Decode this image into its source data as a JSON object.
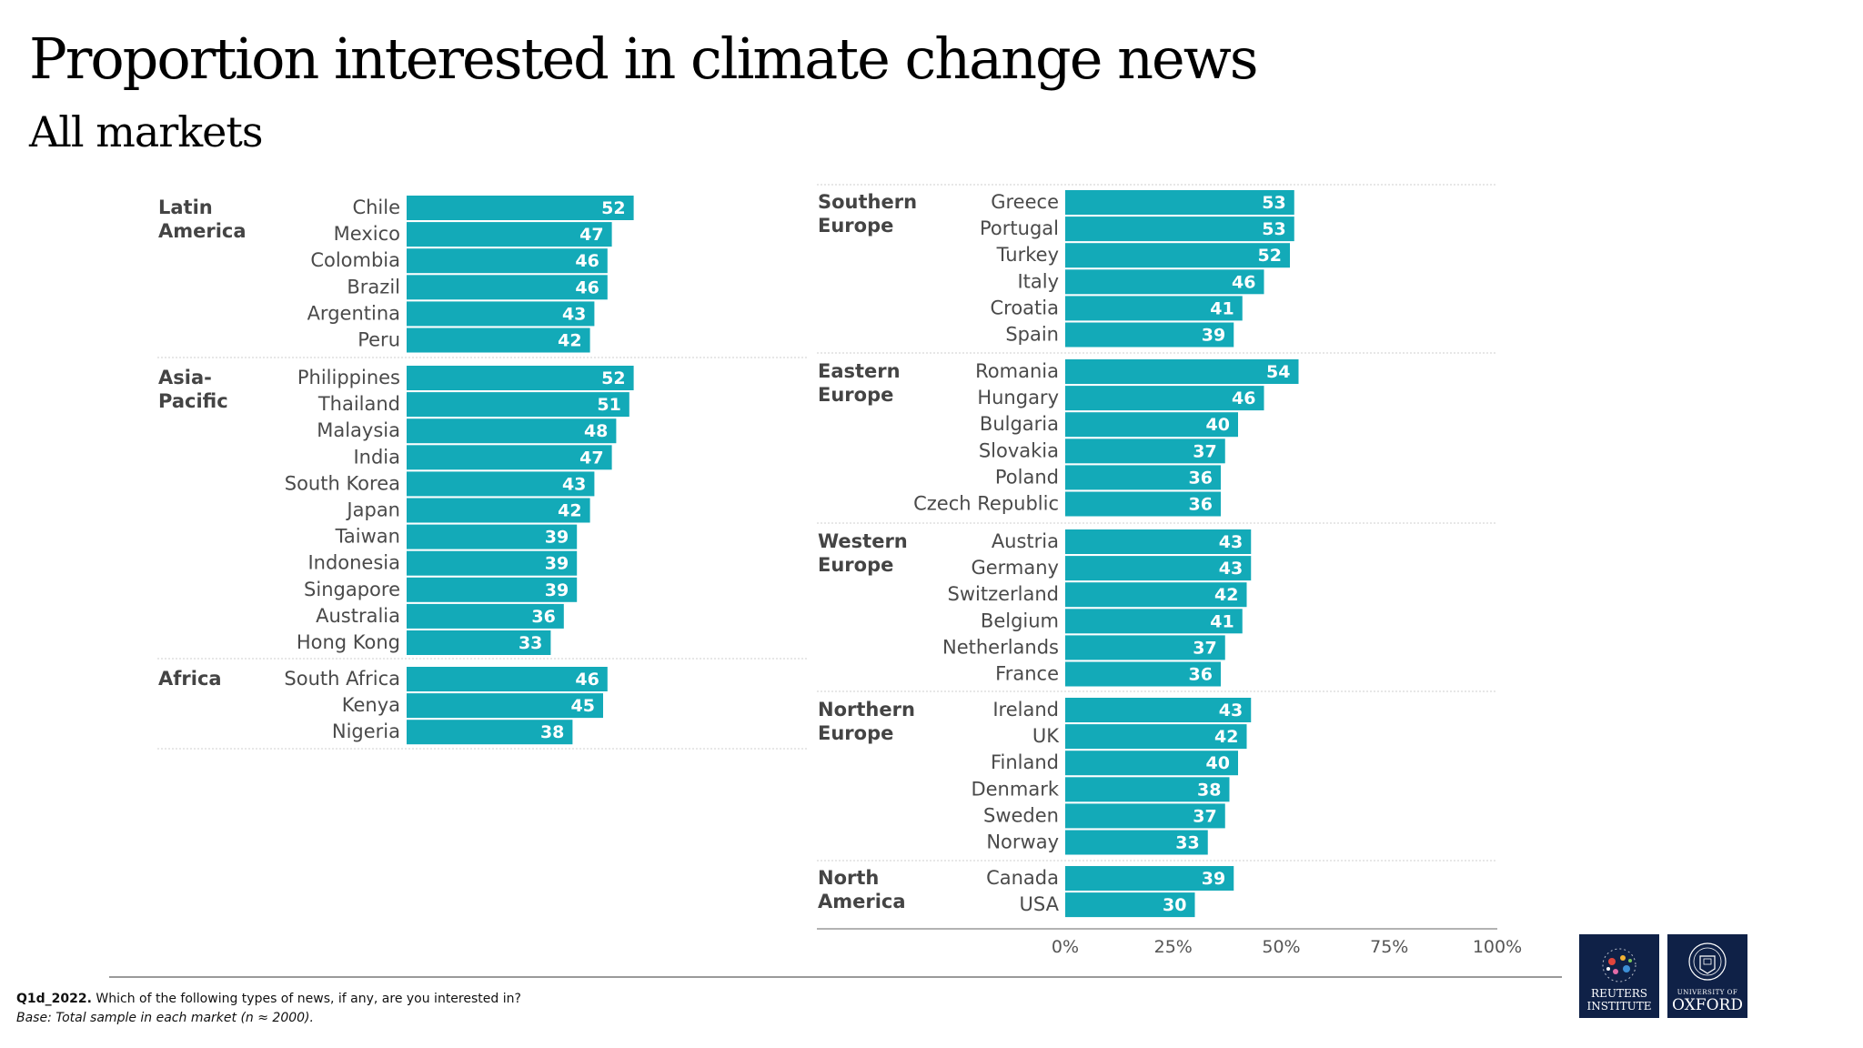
{
  "title": "Proportion interested in climate change news",
  "subtitle": "All markets",
  "footer": {
    "question_code": "Q1d_2022.",
    "question_text": "Which of the following types of news, if any, are you interested in?",
    "base": "Base: Total sample in each market (n ≈ 2000)."
  },
  "logos": {
    "reuters_line1": "REUTERS",
    "reuters_line2": "INSTITUTE",
    "oxford_line1": "UNIVERSITY OF",
    "oxford_line2": "OXFORD"
  },
  "colors": {
    "bar": "#13aab8",
    "logo_bg": "#0f2147"
  },
  "chart_data": {
    "type": "bar",
    "orientation": "horizontal",
    "unit": "%",
    "xlim": [
      0,
      100
    ],
    "xticks": [
      "0%",
      "25%",
      "50%",
      "75%",
      "100%"
    ],
    "panels": [
      {
        "groups": [
          {
            "name": "Latin America",
            "name_lines": [
              "Latin",
              "America"
            ],
            "categories": [
              "Chile",
              "Mexico",
              "Colombia",
              "Brazil",
              "Argentina",
              "Peru"
            ],
            "values": [
              52,
              47,
              46,
              46,
              43,
              42
            ]
          },
          {
            "name": "Asia-Pacific",
            "name_lines": [
              "Asia-",
              "Pacific"
            ],
            "categories": [
              "Philippines",
              "Thailand",
              "Malaysia",
              "India",
              "South Korea",
              "Japan",
              "Taiwan",
              "Indonesia",
              "Singapore",
              "Australia",
              "Hong Kong"
            ],
            "values": [
              52,
              51,
              48,
              47,
              43,
              42,
              39,
              39,
              39,
              36,
              33
            ]
          },
          {
            "name": "Africa",
            "name_lines": [
              "Africa"
            ],
            "categories": [
              "South Africa",
              "Kenya",
              "Nigeria"
            ],
            "values": [
              46,
              45,
              38
            ]
          }
        ]
      },
      {
        "groups": [
          {
            "name": "Southern Europe",
            "name_lines": [
              "Southern",
              "Europe"
            ],
            "categories": [
              "Greece",
              "Portugal",
              "Turkey",
              "Italy",
              "Croatia",
              "Spain"
            ],
            "values": [
              53,
              53,
              52,
              46,
              41,
              39
            ]
          },
          {
            "name": "Eastern Europe",
            "name_lines": [
              "Eastern",
              "Europe"
            ],
            "categories": [
              "Romania",
              "Hungary",
              "Bulgaria",
              "Slovakia",
              "Poland",
              "Czech Republic"
            ],
            "values": [
              54,
              46,
              40,
              37,
              36,
              36
            ]
          },
          {
            "name": "Western Europe",
            "name_lines": [
              "Western",
              "Europe"
            ],
            "categories": [
              "Austria",
              "Germany",
              "Switzerland",
              "Belgium",
              "Netherlands",
              "France"
            ],
            "values": [
              43,
              43,
              42,
              41,
              37,
              36
            ]
          },
          {
            "name": "Northern Europe",
            "name_lines": [
              "Northern",
              "Europe"
            ],
            "categories": [
              "Ireland",
              "UK",
              "Finland",
              "Denmark",
              "Sweden",
              "Norway"
            ],
            "values": [
              43,
              42,
              40,
              38,
              37,
              33
            ]
          },
          {
            "name": "North America",
            "name_lines": [
              "North",
              "America"
            ],
            "categories": [
              "Canada",
              "USA"
            ],
            "values": [
              39,
              30
            ]
          }
        ]
      }
    ]
  }
}
